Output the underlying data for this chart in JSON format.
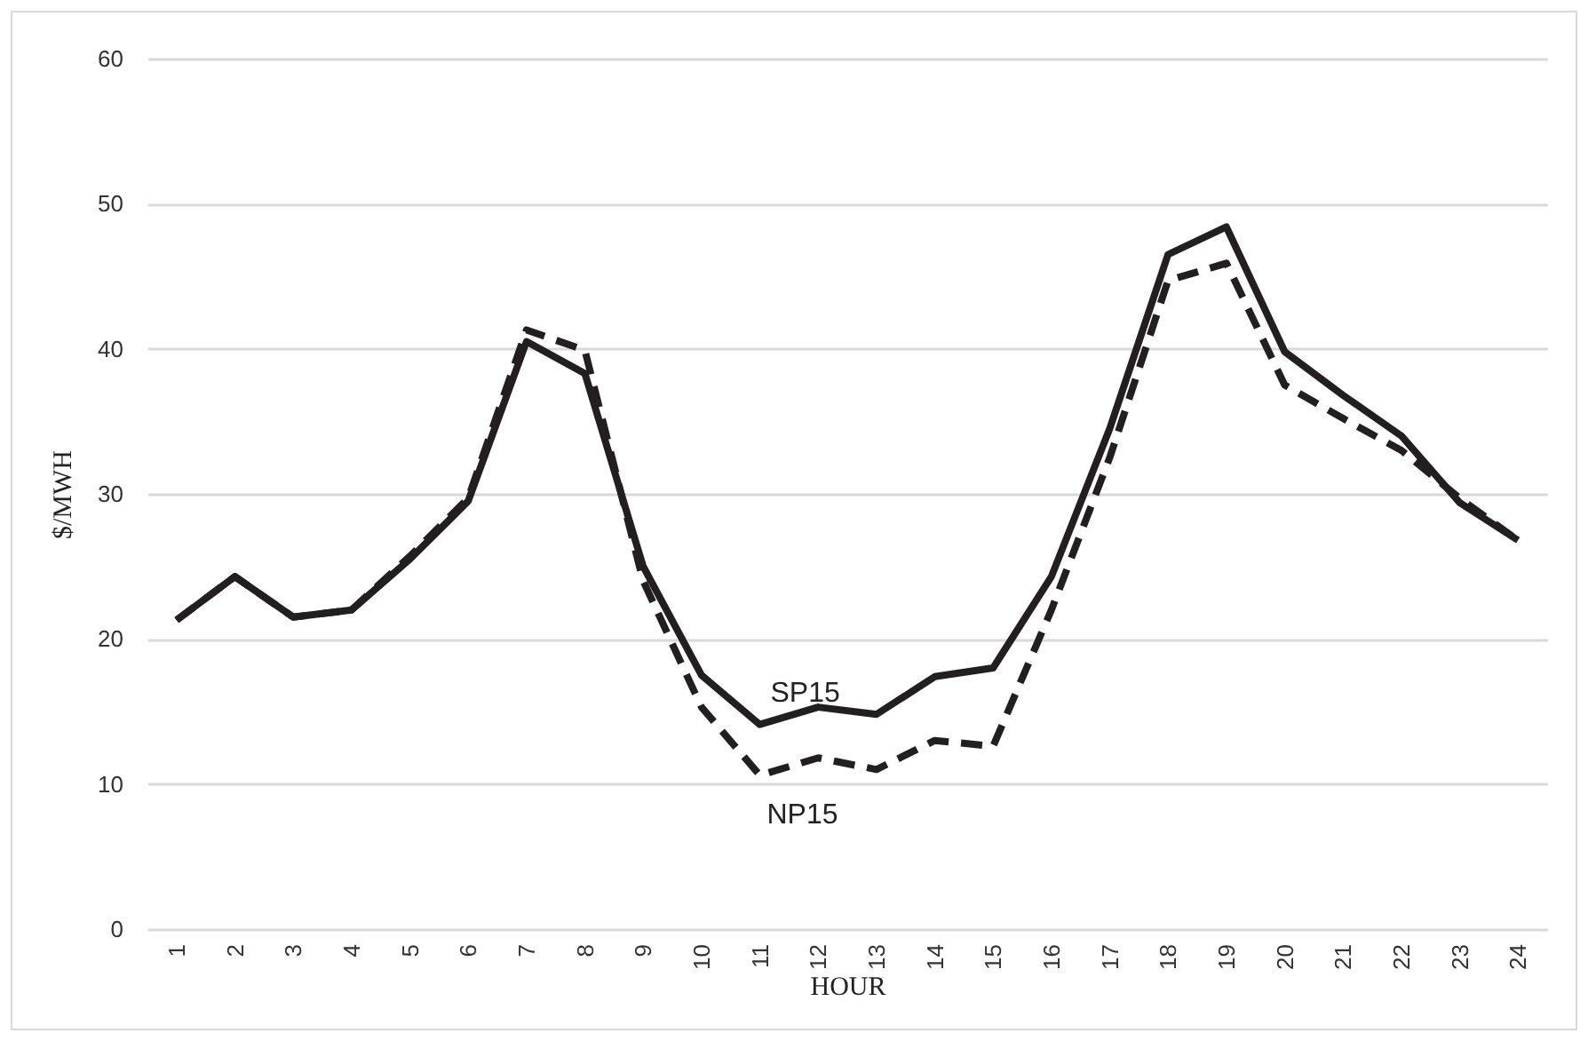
{
  "chart_data": {
    "type": "line",
    "xlabel": "HOUR",
    "ylabel": "$/MWH",
    "categories": [
      "1",
      "2",
      "3",
      "4",
      "5",
      "6",
      "7",
      "8",
      "9",
      "10",
      "11",
      "12",
      "13",
      "14",
      "15",
      "16",
      "17",
      "18",
      "19",
      "20",
      "21",
      "22",
      "23",
      "24"
    ],
    "series": [
      {
        "name": "SP15",
        "color": "#231f20",
        "line_style": "solid",
        "values": [
          21.3,
          24.3,
          21.5,
          22.0,
          25.5,
          29.5,
          40.5,
          38.3,
          25.0,
          17.5,
          14.1,
          15.3,
          14.8,
          17.4,
          18.0,
          24.3,
          34.5,
          46.5,
          48.4,
          39.8,
          36.8,
          34.0,
          29.4,
          26.8
        ]
      },
      {
        "name": "NP15",
        "color": "#231f20",
        "line_style": "dashed",
        "values": [
          21.3,
          24.3,
          21.5,
          22.0,
          25.7,
          29.7,
          41.3,
          39.9,
          24.0,
          15.3,
          10.6,
          11.8,
          11.0,
          13.0,
          12.6,
          22.0,
          32.5,
          44.7,
          45.9,
          37.5,
          35.2,
          33.0,
          29.7,
          26.8
        ]
      }
    ],
    "ylim": [
      0,
      60
    ],
    "yticks": [
      0,
      10,
      20,
      30,
      40,
      50,
      60
    ],
    "grid": "y"
  }
}
